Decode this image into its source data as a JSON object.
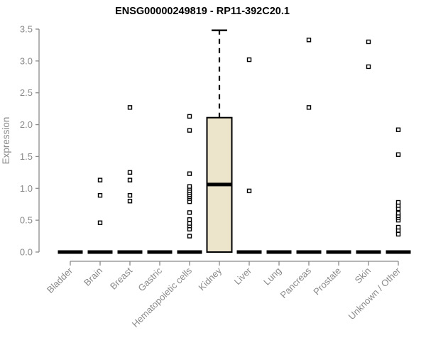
{
  "page": {
    "background": "#ffffff"
  },
  "chart_data": {
    "type": "boxplot",
    "title": "ENSG00000249819 - RP11-392C20.1",
    "ylabel": "Expression",
    "xlabel": "",
    "ylim": [
      0,
      3.5
    ],
    "ytick_labels": [
      "0.0",
      "0.5",
      "1.0",
      "1.5",
      "2.0",
      "2.5",
      "3.0",
      "3.5"
    ],
    "grid": false,
    "legend": null,
    "categories": [
      "Bladder",
      "Brain",
      "Breast",
      "Gastric",
      "Hematopoietic cells",
      "Kidney",
      "Liver",
      "Lung",
      "Pancreas",
      "Prostate",
      "Skin",
      "Unknown / Other"
    ],
    "boxes": [
      {
        "low": 0,
        "q1": 0,
        "median": 0,
        "q3": 0,
        "high": 0,
        "outliers": []
      },
      {
        "low": 0,
        "q1": 0,
        "median": 0,
        "q3": 0,
        "high": 0,
        "outliers": [
          0.46,
          0.89,
          1.13
        ]
      },
      {
        "low": 0,
        "q1": 0,
        "median": 0,
        "q3": 0,
        "high": 0,
        "outliers": [
          0.8,
          0.89,
          1.13,
          1.25,
          2.27
        ]
      },
      {
        "low": 0,
        "q1": 0,
        "median": 0,
        "q3": 0,
        "high": 0,
        "outliers": []
      },
      {
        "low": 0,
        "q1": 0,
        "median": 0,
        "q3": 0,
        "high": 0,
        "outliers": [
          0.25,
          0.36,
          0.41,
          0.45,
          0.51,
          0.62,
          0.79,
          0.84,
          0.87,
          0.9,
          0.93,
          0.96,
          1.0,
          1.03,
          1.23,
          1.91,
          2.13
        ]
      },
      {
        "low": 0,
        "q1": 0,
        "median": 1.06,
        "q3": 2.11,
        "high": 3.48,
        "outliers": []
      },
      {
        "low": 0,
        "q1": 0,
        "median": 0,
        "q3": 0,
        "high": 0,
        "outliers": [
          0.96,
          3.02
        ]
      },
      {
        "low": 0,
        "q1": 0,
        "median": 0,
        "q3": 0,
        "high": 0,
        "outliers": []
      },
      {
        "low": 0,
        "q1": 0,
        "median": 0,
        "q3": 0,
        "high": 0,
        "outliers": [
          2.27,
          3.33
        ]
      },
      {
        "low": 0,
        "q1": 0,
        "median": 0,
        "q3": 0,
        "high": 0,
        "outliers": []
      },
      {
        "low": 0,
        "q1": 0,
        "median": 0,
        "q3": 0,
        "high": 0,
        "outliers": [
          2.91,
          3.3
        ]
      },
      {
        "low": 0,
        "q1": 0,
        "median": 0,
        "q3": 0,
        "high": 0,
        "outliers": [
          0.28,
          0.34,
          0.39,
          0.5,
          0.54,
          0.57,
          0.61,
          0.68,
          0.73,
          0.78,
          1.53,
          1.92
        ]
      }
    ],
    "colors": {
      "box_fill": "#ece5cb",
      "box_stroke": "#000000",
      "median": "#000000",
      "whisker": "#000000",
      "outlier": "#000000",
      "axis": "#8a8a8a",
      "tick_label": "#8a8a8a",
      "title": "#000000"
    }
  }
}
